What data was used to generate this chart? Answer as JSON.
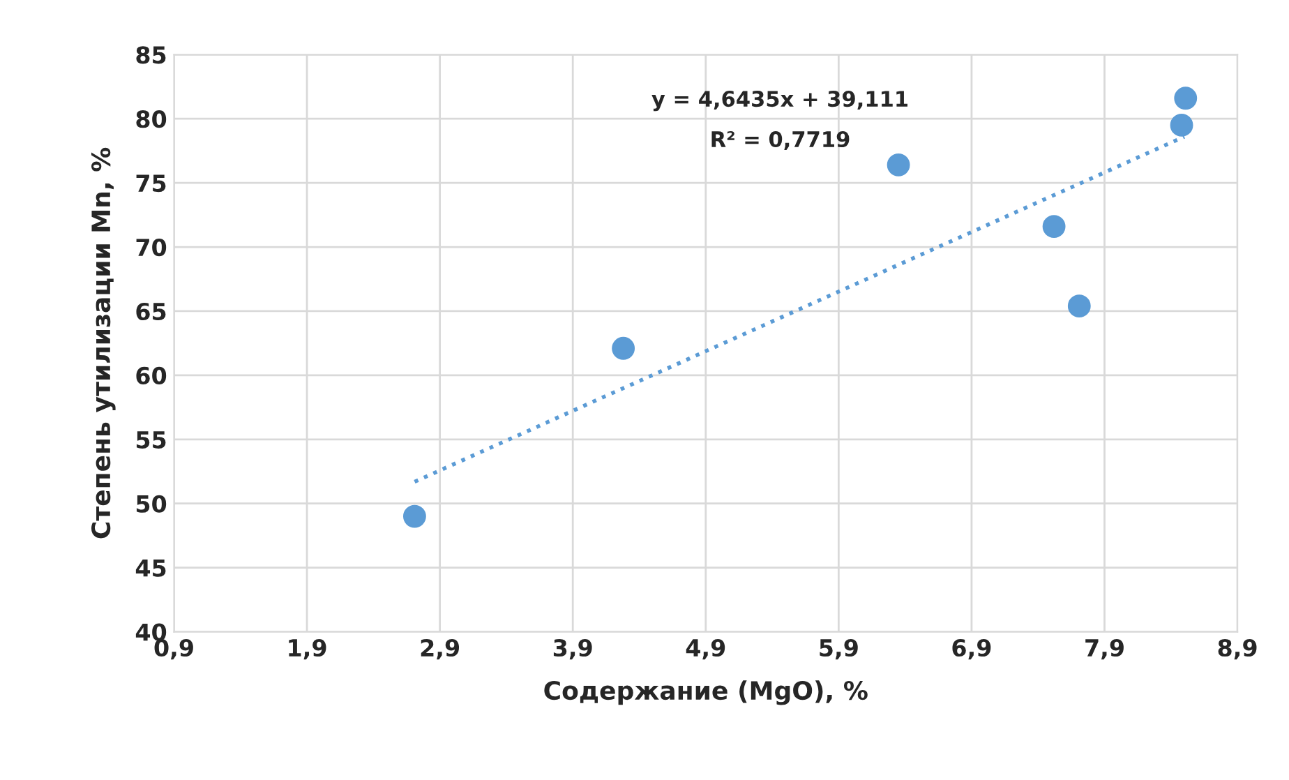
{
  "chart_data": {
    "type": "scatter",
    "xlabel": "Содержание (MgO), %",
    "ylabel": "Степень утилизации Mn, %",
    "series": [
      {
        "color": "#5b9bd5",
        "marker": "circle",
        "x": [
          2.71,
          4.28,
          6.35,
          7.52,
          7.71,
          8.48,
          8.51
        ],
        "values": [
          49.0,
          62.1,
          76.4,
          71.6,
          65.4,
          79.5,
          81.6
        ]
      },
      {
        "type": "line",
        "color": "#5b9bd5",
        "line_style": "dotted",
        "marker": "none",
        "x": [
          2.71,
          8.5
        ],
        "values": [
          51.7,
          78.6
        ]
      }
    ],
    "annotations": [
      "y = 4,6435x + 39,111",
      "R² = 0,7719"
    ],
    "xlim": [
      0.9,
      8.9
    ],
    "ylim": [
      40,
      85
    ],
    "xticks": [
      {
        "value": 0.9,
        "label": "0,9"
      },
      {
        "value": 1.9,
        "label": "1,9"
      },
      {
        "value": 2.9,
        "label": "2,9"
      },
      {
        "value": 3.9,
        "label": "3,9"
      },
      {
        "value": 4.9,
        "label": "4,9"
      },
      {
        "value": 5.9,
        "label": "5,9"
      },
      {
        "value": 6.9,
        "label": "6,9"
      },
      {
        "value": 7.9,
        "label": "7,9"
      },
      {
        "value": 8.9,
        "label": "8,9"
      }
    ],
    "yticks": [
      40,
      45,
      50,
      55,
      60,
      65,
      70,
      75,
      80,
      85
    ],
    "grid": true,
    "legend": false
  }
}
